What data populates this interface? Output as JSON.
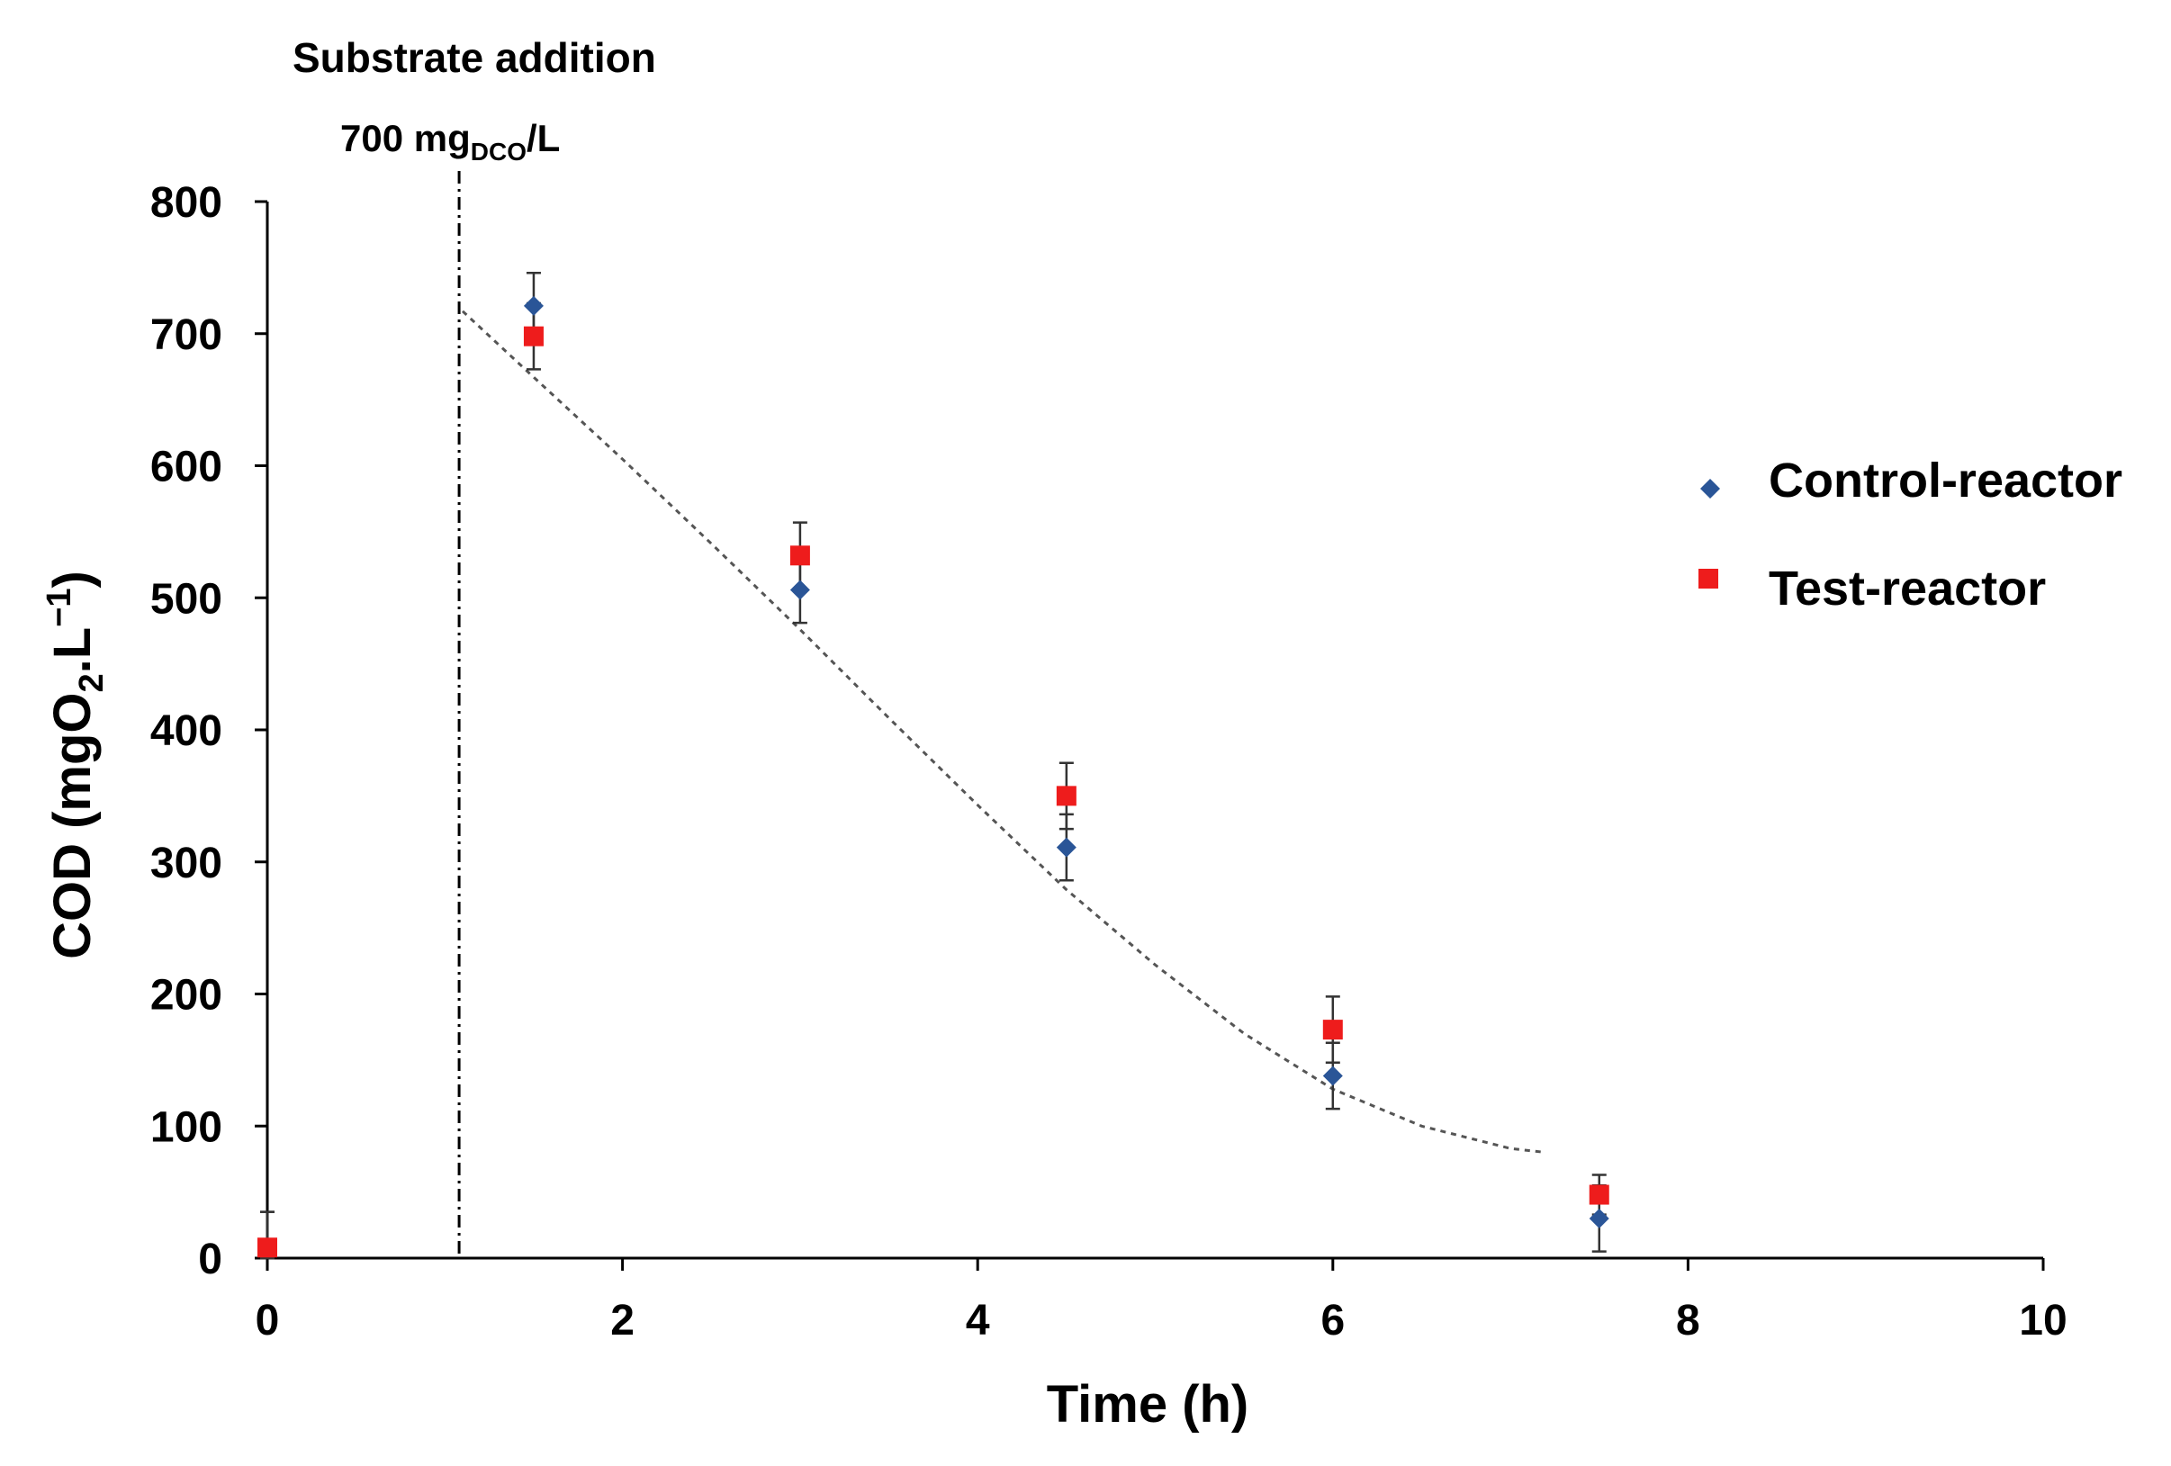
{
  "chart_data": {
    "type": "scatter",
    "title": "",
    "xlabel": "Time (h)",
    "ylabel": {
      "prefix": "COD (mgO",
      "sub": "2",
      "middle": ".L",
      "sup": "−1",
      "suffix": ")"
    },
    "xlim": [
      0,
      10
    ],
    "ylim": [
      0,
      800
    ],
    "xticks": [
      0,
      2,
      4,
      6,
      8,
      10
    ],
    "yticks": [
      0,
      100,
      200,
      300,
      400,
      500,
      600,
      700,
      800
    ],
    "grid": false,
    "legend_position": "right",
    "series": [
      {
        "name": "Control-reactor",
        "marker": "diamond",
        "color": "#2a5597",
        "x": [
          0,
          1.5,
          3,
          4.5,
          6,
          7.5
        ],
        "y": [
          8,
          721,
          506,
          311,
          138,
          30
        ],
        "error": [
          27,
          25,
          25,
          25,
          25,
          25
        ]
      },
      {
        "name": "Test-reactor",
        "marker": "square",
        "color": "#ee1c1c",
        "x": [
          0,
          1.5,
          3,
          4.5,
          6,
          7.5
        ],
        "y": [
          8,
          698,
          532,
          350,
          173,
          48
        ],
        "error": [
          27,
          25,
          25,
          25,
          25,
          15
        ]
      }
    ],
    "trendline": {
      "style": "dotted",
      "color": "#555555",
      "x": [
        1.1,
        1.5,
        2,
        2.5,
        3,
        3.5,
        4,
        4.5,
        5,
        5.5,
        6,
        6.5,
        7,
        7.2
      ],
      "y": [
        717,
        667,
        605,
        541,
        476,
        409,
        343,
        279,
        222,
        170,
        128,
        100,
        83,
        80
      ]
    },
    "annotations": {
      "event_label": "Substrate addition",
      "dose_value": "700 mg",
      "dose_sub": "DCO",
      "dose_unit": "/L",
      "event_x": 1.08
    }
  }
}
